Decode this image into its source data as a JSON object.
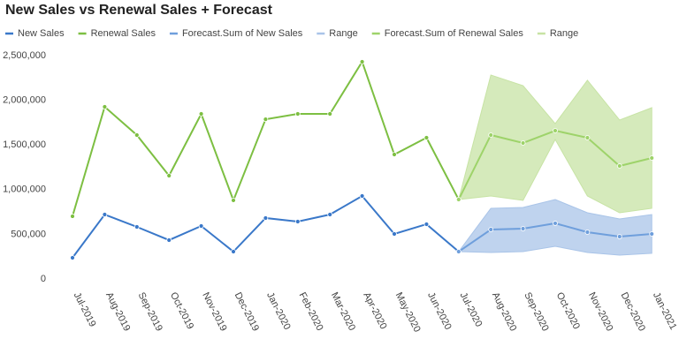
{
  "chart_data": {
    "type": "line",
    "title": "New Sales vs Renewal Sales + Forecast",
    "categories": [
      "Jul-2019",
      "Aug-2019",
      "Sep-2019",
      "Oct-2019",
      "Nov-2019",
      "Dec-2019",
      "Jan-2020",
      "Feb-2020",
      "Mar-2020",
      "Apr-2020",
      "May-2020",
      "Jun-2020",
      "Jul-2020",
      "Aug-2020",
      "Sep-2020",
      "Oct-2020",
      "Nov-2020",
      "Dec-2020",
      "Jan-2021"
    ],
    "ylim": [
      0,
      2500000
    ],
    "yticks": [
      0,
      {
        "value": 500000,
        "label": "500,000"
      },
      {
        "value": 1000000,
        "label": "1,000,000"
      },
      {
        "value": 1500000,
        "label": "1,500,000"
      },
      {
        "value": 2000000,
        "label": "2,000,000"
      },
      {
        "value": 2500000,
        "label": "2,500,000"
      }
    ],
    "series": [
      {
        "name": "New Sales",
        "color": "#3a78c9",
        "values": [
          237000,
          721000,
          583000,
          435000,
          593000,
          306000,
          682000,
          642000,
          721000,
          929000,
          504000,
          613000,
          306000,
          null,
          null,
          null,
          null,
          null,
          null
        ]
      },
      {
        "name": "Renewal Sales",
        "color": "#7dbf42",
        "values": [
          702000,
          1927000,
          1611000,
          1156000,
          1848000,
          880000,
          1787000,
          1848000,
          1848000,
          2431000,
          1393000,
          1581000,
          889000,
          null,
          null,
          null,
          null,
          null,
          null
        ]
      },
      {
        "name": "Forecast.Sum of New Sales",
        "color": "#6f9fdc",
        "values": [
          null,
          null,
          null,
          null,
          null,
          null,
          null,
          null,
          null,
          null,
          null,
          null,
          306000,
          553000,
          563000,
          623000,
          524000,
          474000,
          504000
        ]
      },
      {
        "name": "Range",
        "color": "#a9c4e8",
        "low": [
          null,
          null,
          null,
          null,
          null,
          null,
          null,
          null,
          null,
          null,
          null,
          null,
          306000,
          296000,
          306000,
          366000,
          296000,
          267000,
          287000
        ],
        "high": [
          null,
          null,
          null,
          null,
          null,
          null,
          null,
          null,
          null,
          null,
          null,
          null,
          306000,
          791000,
          800000,
          889000,
          741000,
          672000,
          721000
        ]
      },
      {
        "name": "Forecast.Sum of Renewal Sales",
        "color": "#9ed36a",
        "values": [
          null,
          null,
          null,
          null,
          null,
          null,
          null,
          null,
          null,
          null,
          null,
          null,
          889000,
          1611000,
          1522000,
          1660000,
          1581000,
          1265000,
          1354000
        ]
      },
      {
        "name": "Range",
        "color": "#c7e3a4",
        "low": [
          null,
          null,
          null,
          null,
          null,
          null,
          null,
          null,
          null,
          null,
          null,
          null,
          889000,
          929000,
          880000,
          1561000,
          929000,
          741000,
          791000
        ],
        "high": [
          null,
          null,
          null,
          null,
          null,
          null,
          null,
          null,
          null,
          null,
          null,
          null,
          889000,
          2283000,
          2164000,
          1739000,
          2224000,
          1779000,
          1917000
        ]
      }
    ]
  }
}
